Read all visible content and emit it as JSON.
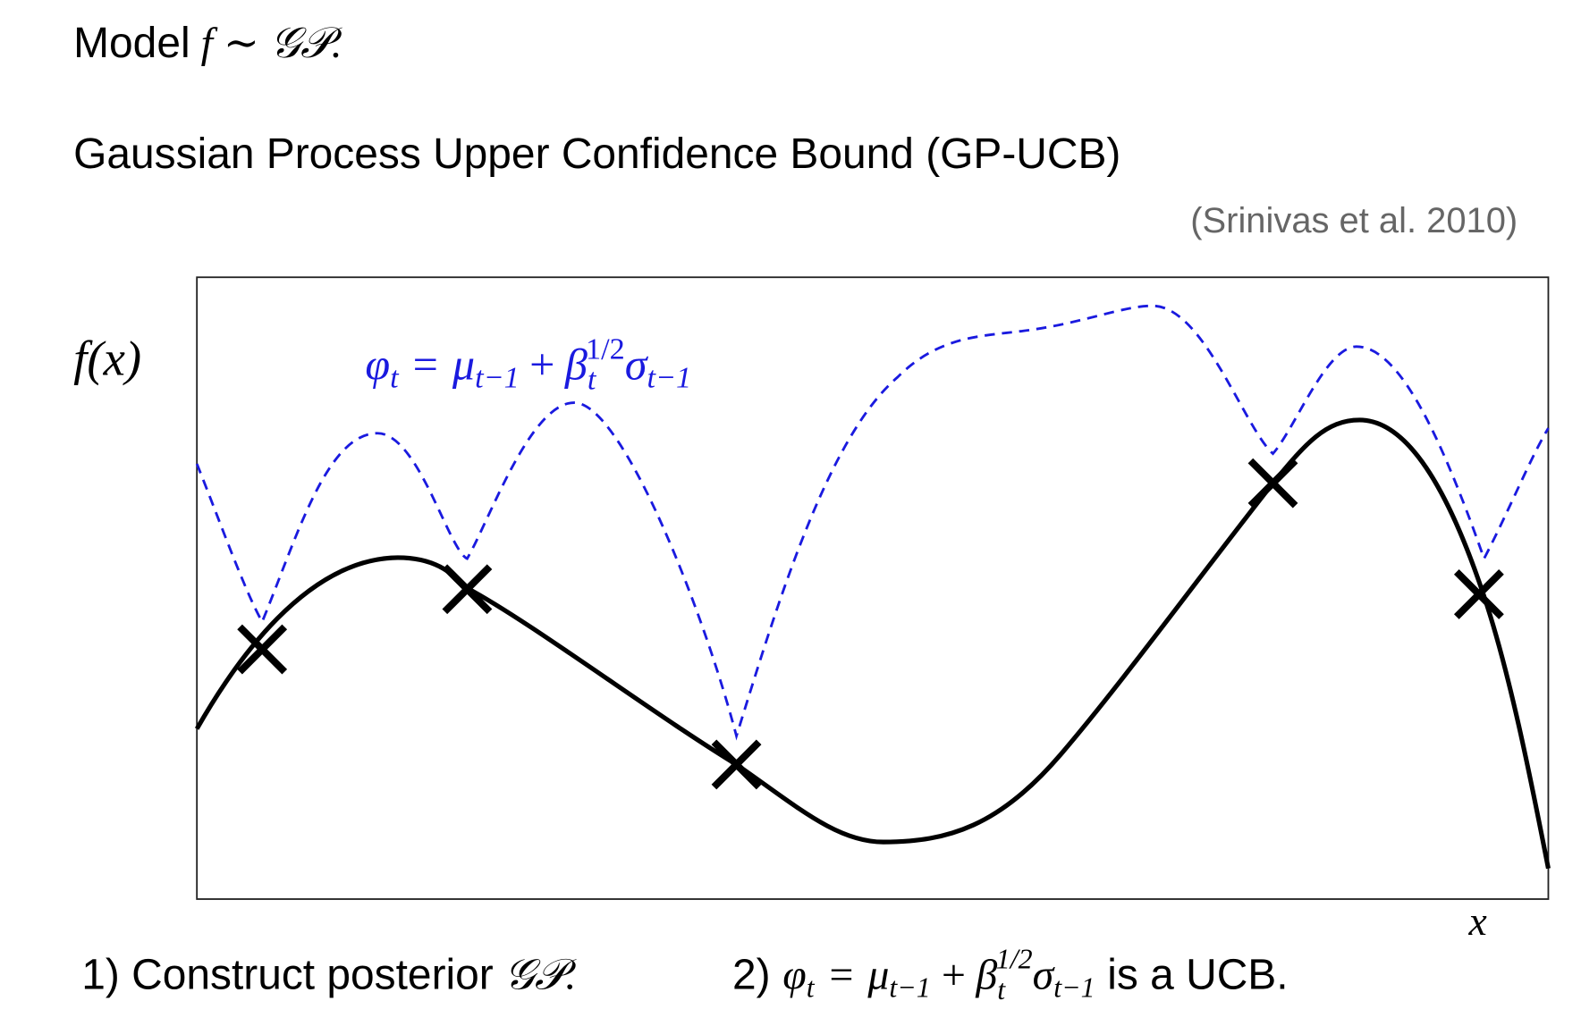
{
  "slide": {
    "model": {
      "word": "Model",
      "math": "f ∼ 𝒢𝒫."
    },
    "heading": "Gaussian Process Upper Confidence Bound (GP-UCB)",
    "citation": "(Srinivas et al. 2010)",
    "plot": {
      "y_label": "f(x)",
      "x_label": "x"
    },
    "formula": {
      "phi": "φ",
      "phi_sub": "t",
      "eq": "=",
      "mu": "μ",
      "mu_sub": "t−1",
      "plus": "+",
      "beta": "β",
      "beta_sub": "t",
      "beta_sup": "1/2",
      "sigma": "σ",
      "sigma_sub": "t−1"
    },
    "steps": [
      {
        "text": "1) Construct posterior",
        "math": "𝒢𝒫."
      },
      {
        "prefix": "2)",
        "suffix": "is a UCB."
      }
    ]
  }
}
